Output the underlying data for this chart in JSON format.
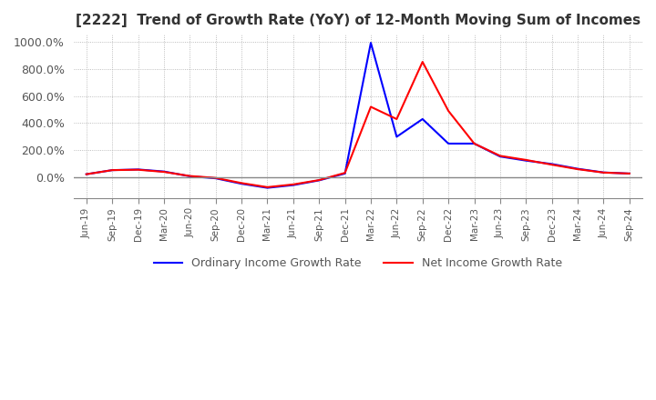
{
  "title": "[2222]  Trend of Growth Rate (YoY) of 12-Month Moving Sum of Incomes",
  "legend_labels": [
    "Ordinary Income Growth Rate",
    "Net Income Growth Rate"
  ],
  "line_colors": [
    "#0000FF",
    "#FF0000"
  ],
  "background_color": "#FFFFFF",
  "grid_color": "#AAAAAA",
  "ylim": [
    -150,
    1050
  ],
  "yticks": [
    0,
    200,
    400,
    600,
    800,
    1000
  ],
  "ytick_labels": [
    "0.0%",
    "200.0%",
    "400.0%",
    "600.0%",
    "800.0%",
    "1000.0%"
  ],
  "x_dates": [
    "Jun-19",
    "Sep-19",
    "Dec-19",
    "Mar-20",
    "Jun-20",
    "Sep-20",
    "Dec-20",
    "Mar-21",
    "Jun-21",
    "Sep-21",
    "Dec-21",
    "Mar-22",
    "Jun-22",
    "Sep-22",
    "Dec-22",
    "Mar-23",
    "Jun-23",
    "Sep-23",
    "Dec-23",
    "Mar-24",
    "Jun-24",
    "Sep-24"
  ],
  "ordinary_income": [
    25,
    55,
    60,
    45,
    10,
    -5,
    -45,
    -75,
    -55,
    -20,
    30,
    990,
    300,
    430,
    250,
    250,
    155,
    125,
    100,
    65,
    38,
    30
  ],
  "net_income": [
    25,
    55,
    58,
    42,
    12,
    -2,
    -40,
    -70,
    -50,
    -18,
    35,
    520,
    430,
    850,
    490,
    250,
    160,
    130,
    95,
    62,
    37,
    30
  ]
}
